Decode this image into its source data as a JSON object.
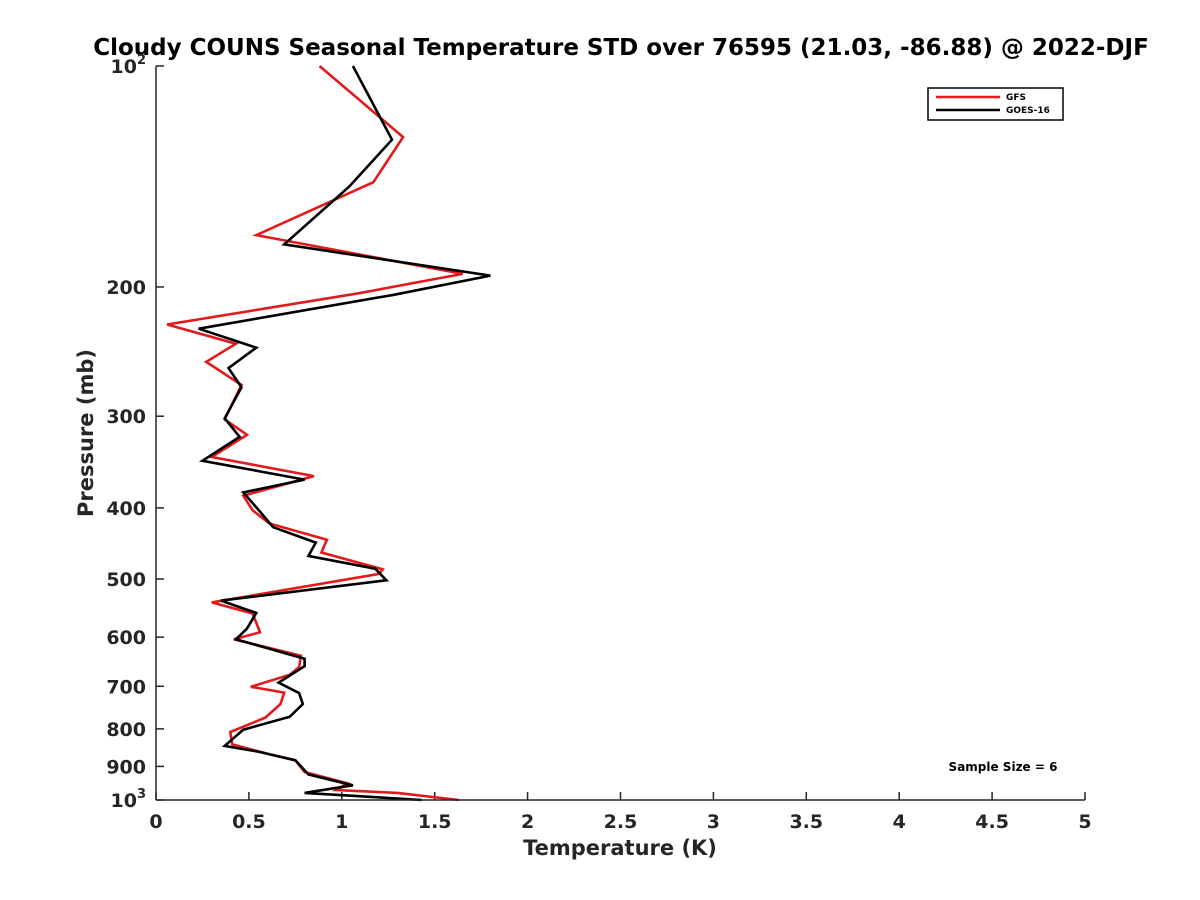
{
  "chart_data": {
    "type": "line",
    "title": "Cloudy COUNS Seasonal Temperature STD over 76595 (21.03, -86.88) @ 2022-DJF",
    "xlabel": "Temperature (K)",
    "ylabel": "Pressure (mb)",
    "xlim": [
      0,
      5
    ],
    "ylim": [
      100,
      1000
    ],
    "yscale": "log",
    "yreversed": true,
    "grid": false,
    "legend_position": "top-right",
    "x_ticks": [
      "0",
      "0.5",
      "1",
      "1.5",
      "2",
      "2.5",
      "3",
      "3.5",
      "4",
      "4.5",
      "5"
    ],
    "y_ticks": [
      {
        "value": 100,
        "label": "10",
        "sup": "2"
      },
      {
        "value": 200,
        "label": "200"
      },
      {
        "value": 300,
        "label": "300"
      },
      {
        "value": 400,
        "label": "400"
      },
      {
        "value": 500,
        "label": "500"
      },
      {
        "value": 600,
        "label": "600"
      },
      {
        "value": 700,
        "label": "700"
      },
      {
        "value": 800,
        "label": "800"
      },
      {
        "value": 900,
        "label": "900"
      },
      {
        "value": 1000,
        "label": "10",
        "sup": "3"
      }
    ],
    "annotation": "Sample Size = 6",
    "series": [
      {
        "name": "GFS",
        "color": "#e31a1c",
        "points": [
          [
            0.88,
            100
          ],
          [
            1.33,
            125
          ],
          [
            1.17,
            144
          ],
          [
            0.54,
            170
          ],
          [
            1.65,
            192
          ],
          [
            1.09,
            204
          ],
          [
            0.06,
            225
          ],
          [
            0.43,
            239
          ],
          [
            0.27,
            253
          ],
          [
            0.46,
            272
          ],
          [
            0.37,
            303
          ],
          [
            0.49,
            318
          ],
          [
            0.3,
            341
          ],
          [
            0.85,
            362
          ],
          [
            0.47,
            385
          ],
          [
            0.52,
            403
          ],
          [
            0.61,
            420
          ],
          [
            0.92,
            442
          ],
          [
            0.89,
            460
          ],
          [
            1.22,
            485
          ],
          [
            1.2,
            492
          ],
          [
            0.3,
            538
          ],
          [
            0.52,
            557
          ],
          [
            0.56,
            591
          ],
          [
            0.42,
            604
          ],
          [
            0.78,
            636
          ],
          [
            0.77,
            659
          ],
          [
            0.72,
            675
          ],
          [
            0.51,
            701
          ],
          [
            0.69,
            714
          ],
          [
            0.67,
            740
          ],
          [
            0.59,
            772
          ],
          [
            0.4,
            808
          ],
          [
            0.41,
            840
          ],
          [
            0.6,
            865
          ],
          [
            0.75,
            883
          ],
          [
            0.8,
            916
          ],
          [
            1.03,
            949
          ],
          [
            0.97,
            969
          ],
          [
            1.3,
            978
          ],
          [
            1.63,
            1000
          ]
        ]
      },
      {
        "name": "GOES-16",
        "color": "#000000",
        "points": [
          [
            1.06,
            100
          ],
          [
            1.27,
            126
          ],
          [
            1.04,
            146
          ],
          [
            0.69,
            175
          ],
          [
            1.8,
            193
          ],
          [
            1.28,
            205
          ],
          [
            0.23,
            228
          ],
          [
            0.54,
            242
          ],
          [
            0.39,
            258
          ],
          [
            0.46,
            274
          ],
          [
            0.37,
            302
          ],
          [
            0.45,
            320
          ],
          [
            0.25,
            345
          ],
          [
            0.8,
            366
          ],
          [
            0.47,
            381
          ],
          [
            0.55,
            402
          ],
          [
            0.63,
            425
          ],
          [
            0.86,
            446
          ],
          [
            0.82,
            465
          ],
          [
            1.18,
            484
          ],
          [
            1.24,
            502
          ],
          [
            0.35,
            535
          ],
          [
            0.54,
            556
          ],
          [
            0.49,
            584
          ],
          [
            0.43,
            604
          ],
          [
            0.8,
            642
          ],
          [
            0.8,
            657
          ],
          [
            0.66,
            692
          ],
          [
            0.77,
            715
          ],
          [
            0.79,
            740
          ],
          [
            0.72,
            770
          ],
          [
            0.47,
            802
          ],
          [
            0.37,
            844
          ],
          [
            0.55,
            859
          ],
          [
            0.75,
            883
          ],
          [
            0.82,
            923
          ],
          [
            1.06,
            955
          ],
          [
            0.8,
            978
          ],
          [
            1.43,
            1000
          ]
        ]
      }
    ]
  }
}
